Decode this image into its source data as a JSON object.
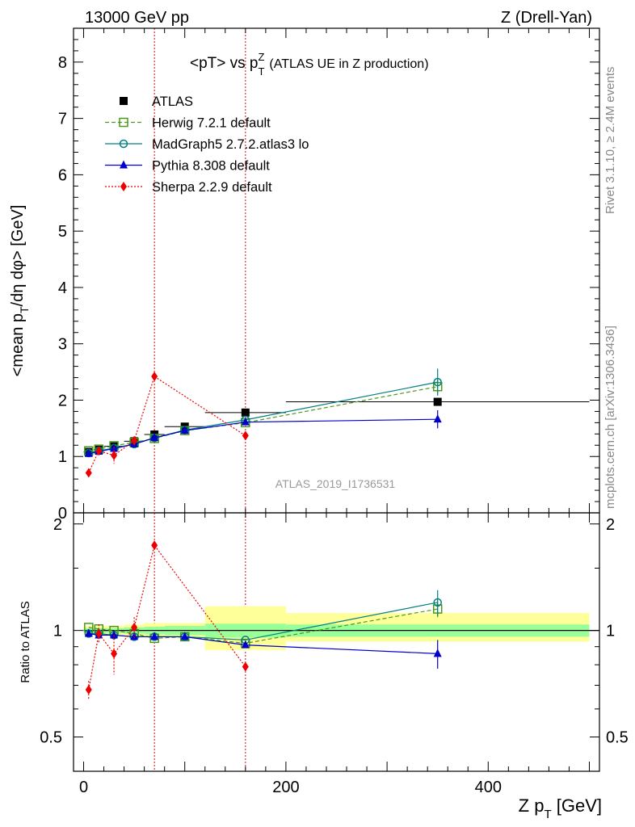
{
  "header": {
    "left": "13000 GeV pp",
    "right": "Z (Drell-Yan)"
  },
  "side_labels": {
    "rivet": "Rivet 3.1.10, ≥ 2.4M events",
    "mcplots": "mcplots.cern.ch [arXiv:1306.3436]"
  },
  "chart_data": [
    {
      "type": "scatter",
      "title": "<pT> vs p_T^Z (ATLAS UE in Z production)",
      "title_main": "<pT> vs p",
      "title_sup": "Z",
      "title_sub": "T",
      "title_note": "(ATLAS UE in Z production)",
      "ylabel": "<mean p_T/dη dφ> [GeV]",
      "ylabel_main": "<mean p",
      "ylabel_sub": "T",
      "ylabel_tail": "/dη dφ> [GeV]",
      "watermark": "ATLAS_2019_I1736531",
      "xlim": [
        -10,
        510
      ],
      "ylim": [
        0,
        8.6
      ],
      "yticks": [
        "0",
        "1",
        "2",
        "3",
        "4",
        "5",
        "6",
        "7",
        "8"
      ],
      "ytick_values": [
        0,
        1,
        2,
        3,
        4,
        5,
        6,
        7,
        8
      ],
      "grid": false,
      "legend_position": "top-left",
      "vlines": [
        70,
        160
      ],
      "series": [
        {
          "name": "ATLAS",
          "color": "#000000",
          "marker": "square-filled",
          "line": "none",
          "x": [
            5,
            15,
            30,
            50,
            70,
            100,
            160,
            350
          ],
          "y": [
            1.08,
            1.12,
            1.18,
            1.27,
            1.39,
            1.53,
            1.78,
            1.97
          ],
          "xerr": [
            5,
            5,
            10,
            10,
            10,
            20,
            40,
            150
          ]
        },
        {
          "name": "Herwig 7.2.1 default",
          "color": "#4a9a1a",
          "marker": "square-open",
          "line": "dashed",
          "x": [
            5,
            15,
            30,
            50,
            70,
            100,
            160,
            350
          ],
          "y": [
            1.1,
            1.13,
            1.19,
            1.25,
            1.32,
            1.46,
            1.6,
            2.24
          ],
          "yerr": [
            0,
            0,
            0,
            0,
            0,
            0,
            0,
            0.12
          ]
        },
        {
          "name": "MadGraph5 2.7.2.atlas3 lo",
          "color": "#00807f",
          "marker": "circle-open",
          "line": "solid",
          "x": [
            5,
            15,
            30,
            50,
            70,
            100,
            160,
            350
          ],
          "y": [
            1.06,
            1.1,
            1.15,
            1.22,
            1.33,
            1.47,
            1.65,
            2.32
          ],
          "yerr": [
            0,
            0,
            0,
            0,
            0,
            0,
            0,
            0.24
          ]
        },
        {
          "name": "Pythia 8.308 default",
          "color": "#0000cc",
          "marker": "triangle-filled",
          "line": "solid",
          "x": [
            5,
            15,
            30,
            50,
            70,
            100,
            160,
            350
          ],
          "y": [
            1.05,
            1.09,
            1.14,
            1.22,
            1.33,
            1.46,
            1.61,
            1.66
          ],
          "yerr": [
            0,
            0,
            0,
            0,
            0,
            0,
            0,
            0.16
          ]
        },
        {
          "name": "Sherpa 2.2.9 default",
          "color": "#ee0000",
          "marker": "diamond-filled",
          "line": "dotted",
          "x": [
            5,
            15,
            30,
            50,
            70,
            160
          ],
          "y": [
            0.71,
            1.1,
            1.02,
            1.28,
            2.42,
            1.37
          ],
          "yerr": [
            0.05,
            0.06,
            0.15,
            0.08,
            0,
            0
          ]
        }
      ]
    },
    {
      "type": "scatter",
      "ylabel": "Ratio to ATLAS",
      "xlabel": "Z p_T [GeV]",
      "xlabel_main": "Z p",
      "xlabel_sub": "T",
      "xlabel_tail": " [GeV]",
      "xlim": [
        -10,
        510
      ],
      "ylim": [
        0.4,
        2.15
      ],
      "ylog": true,
      "xticks": [
        "0",
        "200",
        "400"
      ],
      "xtick_values": [
        0,
        200,
        400
      ],
      "yticks": [
        "0.5",
        "1",
        "2"
      ],
      "ytick_values": [
        0.5,
        1,
        2
      ],
      "reference_line": 1,
      "bands": [
        {
          "x0": 0,
          "x1": 10,
          "green": [
            0.985,
            1.015
          ],
          "yellow": [
            0.97,
            1.03
          ]
        },
        {
          "x0": 10,
          "x1": 20,
          "green": [
            0.985,
            1.015
          ],
          "yellow": [
            0.97,
            1.03
          ]
        },
        {
          "x0": 20,
          "x1": 40,
          "green": [
            0.985,
            1.015
          ],
          "yellow": [
            0.97,
            1.03
          ]
        },
        {
          "x0": 40,
          "x1": 60,
          "green": [
            0.98,
            1.02
          ],
          "yellow": [
            0.96,
            1.04
          ]
        },
        {
          "x0": 60,
          "x1": 80,
          "green": [
            0.975,
            1.025
          ],
          "yellow": [
            0.95,
            1.05
          ]
        },
        {
          "x0": 80,
          "x1": 120,
          "green": [
            0.97,
            1.03
          ],
          "yellow": [
            0.95,
            1.05
          ]
        },
        {
          "x0": 120,
          "x1": 200,
          "green": [
            0.955,
            1.045
          ],
          "yellow": [
            0.88,
            1.17
          ]
        },
        {
          "x0": 200,
          "x1": 500,
          "green": [
            0.96,
            1.04
          ],
          "yellow": [
            0.93,
            1.12
          ]
        }
      ],
      "series": [
        {
          "name": "Herwig 7.2.1 default",
          "color": "#4a9a1a",
          "marker": "square-open",
          "line": "dashed",
          "x": [
            5,
            15,
            30,
            50,
            70,
            100,
            160,
            350
          ],
          "y": [
            1.02,
            1.01,
            1.0,
            0.98,
            0.95,
            0.96,
            0.92,
            1.15
          ],
          "yerr": [
            0,
            0,
            0,
            0,
            0,
            0,
            0,
            0.06
          ]
        },
        {
          "name": "MadGraph5 2.7.2.atlas3 lo",
          "color": "#00807f",
          "marker": "circle-open",
          "line": "solid",
          "x": [
            5,
            15,
            30,
            50,
            70,
            100,
            160,
            350
          ],
          "y": [
            0.98,
            0.98,
            0.97,
            0.96,
            0.96,
            0.96,
            0.94,
            1.2
          ],
          "yerr": [
            0,
            0,
            0,
            0,
            0,
            0,
            0,
            0.1
          ]
        },
        {
          "name": "Pythia 8.308 default",
          "color": "#0000cc",
          "marker": "triangle-filled",
          "line": "solid",
          "x": [
            5,
            15,
            30,
            50,
            70,
            100,
            160,
            350
          ],
          "y": [
            0.98,
            0.97,
            0.97,
            0.96,
            0.96,
            0.96,
            0.91,
            0.86
          ],
          "yerr": [
            0,
            0,
            0,
            0,
            0,
            0,
            0,
            0.08
          ]
        },
        {
          "name": "Sherpa 2.2.9 default",
          "color": "#ee0000",
          "marker": "diamond-filled",
          "line": "dotted",
          "x": [
            5,
            15,
            30,
            50,
            70,
            160
          ],
          "y": [
            0.68,
            0.98,
            0.86,
            1.02,
            1.74,
            0.79
          ],
          "yerr": [
            0.04,
            0.06,
            0.11,
            0.07,
            0,
            0
          ]
        }
      ]
    }
  ]
}
